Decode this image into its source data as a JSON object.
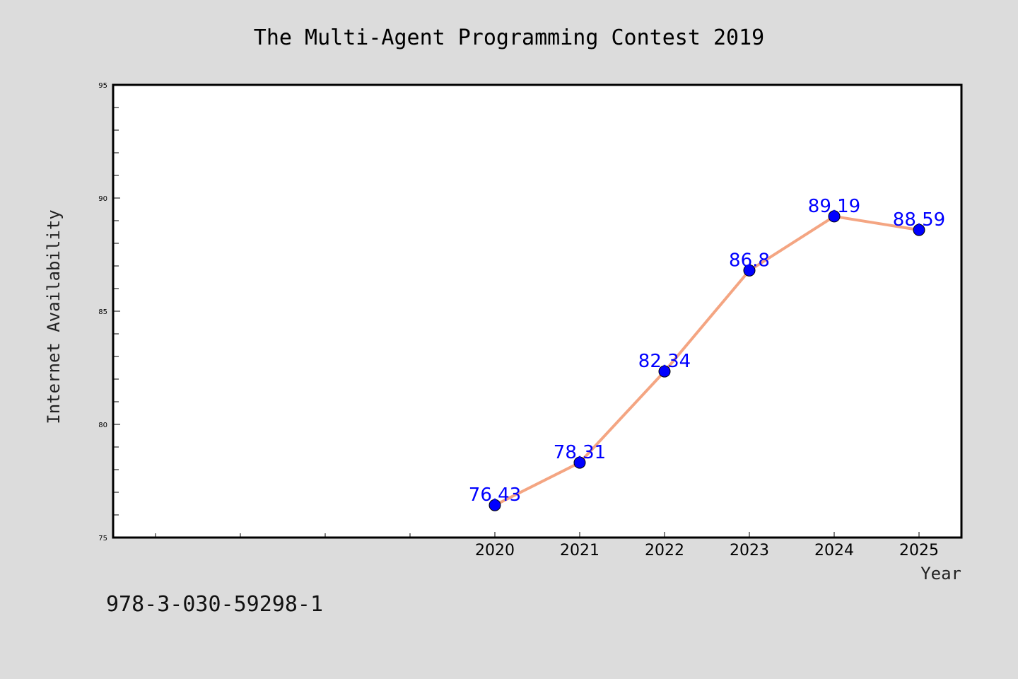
{
  "chart_data": {
    "type": "line",
    "title": "The Multi-Agent Programming Contest 2019",
    "xlabel": "Year",
    "ylabel": "Internet Availability",
    "categories": [
      "2020",
      "2021",
      "2022",
      "2023",
      "2024",
      "2025"
    ],
    "series": [
      {
        "values": [
          76.43,
          78.31,
          82.34,
          86.8,
          89.19,
          88.59
        ],
        "labels": [
          "76.43",
          "78.31",
          "82.34",
          "86.8",
          "89.19",
          "88.59"
        ],
        "line_color": "#f4a582",
        "marker_color": "#0000ff"
      }
    ],
    "ylim": [
      75,
      95
    ],
    "yticks": [
      "75",
      "80",
      "85",
      "90",
      "95"
    ],
    "grid": false,
    "legend": "none"
  },
  "footnote": "978-3-030-59298-1",
  "colors": {
    "background": "#dcdcdc",
    "plot_background": "#ffffff",
    "data_label": "#0000ff"
  }
}
